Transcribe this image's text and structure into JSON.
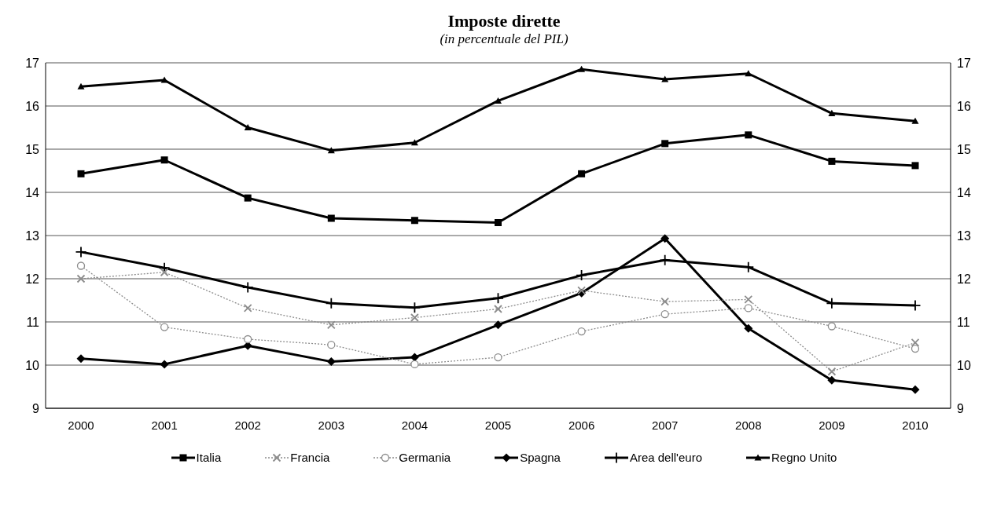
{
  "chart_data": {
    "type": "line",
    "title": "Imposte dirette",
    "subtitle": "(in percentuale del PIL)",
    "categories": [
      "2000",
      "2001",
      "2002",
      "2003",
      "2004",
      "2005",
      "2006",
      "2007",
      "2008",
      "2009",
      "2010"
    ],
    "series": [
      {
        "name": "Italia",
        "color": "#000000",
        "marker": "square",
        "line_style": "solid",
        "values": [
          14.43,
          14.75,
          13.87,
          13.4,
          13.35,
          13.3,
          14.43,
          15.13,
          15.33,
          14.72,
          14.62
        ]
      },
      {
        "name": "Francia",
        "color": "#8c8c8c",
        "marker": "cross",
        "line_style": "dotted",
        "values": [
          12.0,
          12.15,
          11.32,
          10.93,
          11.1,
          11.3,
          11.73,
          11.47,
          11.52,
          9.85,
          10.52
        ]
      },
      {
        "name": "Germania",
        "color": "#8c8c8c",
        "marker": "circle",
        "line_style": "dotted",
        "values": [
          12.3,
          10.88,
          10.6,
          10.47,
          10.02,
          10.18,
          10.78,
          11.18,
          11.32,
          10.9,
          10.38
        ]
      },
      {
        "name": "Spagna",
        "color": "#000000",
        "marker": "diamond",
        "line_style": "solid",
        "values": [
          10.15,
          10.02,
          10.45,
          10.08,
          10.18,
          10.93,
          11.67,
          12.93,
          10.85,
          9.65,
          9.43
        ]
      },
      {
        "name": "Area dell'euro",
        "color": "#000000",
        "marker": "plus",
        "line_style": "solid",
        "values": [
          12.62,
          12.25,
          11.8,
          11.43,
          11.33,
          11.55,
          12.08,
          12.43,
          12.27,
          11.43,
          11.38
        ]
      },
      {
        "name": "Regno Unito",
        "color": "#000000",
        "marker": "triangle",
        "line_style": "solid",
        "values": [
          16.45,
          16.6,
          15.5,
          14.97,
          15.15,
          16.12,
          16.85,
          16.62,
          16.75,
          15.83,
          15.65
        ]
      }
    ],
    "ylim": [
      9,
      17
    ],
    "yticks": [
      9,
      10,
      11,
      12,
      13,
      14,
      15,
      16,
      17
    ],
    "y2lim": [
      9,
      17
    ],
    "y2ticks": [
      9,
      10,
      11,
      12,
      13,
      14,
      15,
      16,
      17
    ],
    "grid": "y",
    "legend": "bottom"
  }
}
